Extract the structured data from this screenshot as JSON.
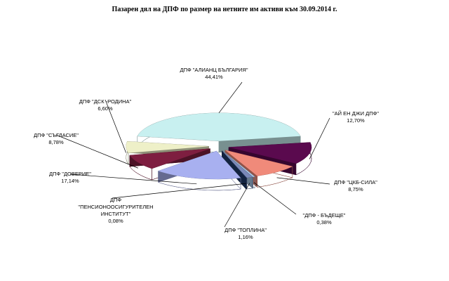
{
  "chart_data": {
    "type": "pie3d",
    "title": "Пазарен дял на ДПФ по размер на нетните им активи към 30.09.2014 г.",
    "categories": [
      "ДПФ \"АЛИАНЦ БЪЛГАРИЯ\"",
      "\"АЙ ЕН ДЖИ ДПФ\"",
      "ДПФ \"ЦКБ-СИЛА\"",
      "\"ДПФ - БЪДЕЩЕ\"",
      "ДПФ \"ТОПЛИНА\"",
      "ДПФ \"ПЕНСИОНООСИГУРИТЕЛЕН ИНСТИТУТ\"",
      "ДПФ \"ДОВЕРИЕ\"",
      "ДПФ \"СЪГЛАСИЕ\"",
      "ДПФ \"ДСК -РОДИНА\""
    ],
    "values": [
      44.41,
      12.7,
      8.75,
      0.38,
      1.16,
      0.08,
      17.14,
      8.78,
      6.6
    ],
    "value_labels": [
      "44,41%",
      "12,70%",
      "8,75%",
      "0,38%",
      "1,16%",
      "0,08%",
      "17,14%",
      "8,78%",
      "6,60%"
    ],
    "colors": [
      "#c8f0f0",
      "#5a0a4e",
      "#f08a7a",
      "#a8c8e8",
      "#7a88b8",
      "#1f3a6a",
      "#a8b0f0",
      "#7e1e40",
      "#eef0c8"
    ]
  }
}
